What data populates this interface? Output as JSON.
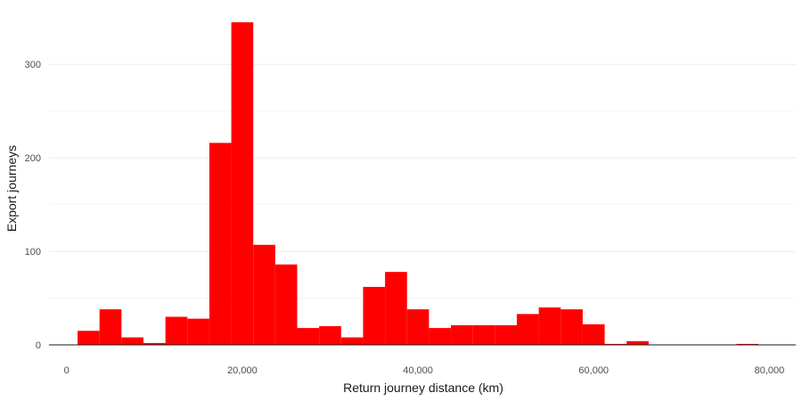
{
  "chart_data": {
    "type": "bar",
    "title": "",
    "xlabel": "Return journey distance (km)",
    "ylabel": "Export journeys",
    "xlim": [
      -2000,
      83000
    ],
    "ylim": [
      0,
      345
    ],
    "x_ticks": [
      {
        "value": 0,
        "label": "0"
      },
      {
        "value": 20000,
        "label": "20,000"
      },
      {
        "value": 40000,
        "label": "40,000"
      },
      {
        "value": 60000,
        "label": "60,000"
      },
      {
        "value": 80000,
        "label": "80,000"
      }
    ],
    "y_ticks": [
      {
        "value": 0,
        "label": "0"
      },
      {
        "value": 100,
        "label": "100"
      },
      {
        "value": 200,
        "label": "200"
      },
      {
        "value": 300,
        "label": "300"
      }
    ],
    "y_minor_gridlines": [
      50,
      150,
      250
    ],
    "grid": true,
    "bar_color": "#ff0000",
    "bin_width": 2500,
    "bins": [
      {
        "x0": 1250,
        "x1": 3750,
        "count": 15
      },
      {
        "x0": 3750,
        "x1": 6250,
        "count": 38
      },
      {
        "x0": 6250,
        "x1": 8750,
        "count": 8
      },
      {
        "x0": 8750,
        "x1": 11250,
        "count": 2
      },
      {
        "x0": 11250,
        "x1": 13750,
        "count": 30
      },
      {
        "x0": 13750,
        "x1": 16250,
        "count": 28
      },
      {
        "x0": 16250,
        "x1": 18750,
        "count": 216
      },
      {
        "x0": 18750,
        "x1": 21250,
        "count": 345
      },
      {
        "x0": 21250,
        "x1": 23750,
        "count": 107
      },
      {
        "x0": 23750,
        "x1": 26250,
        "count": 86
      },
      {
        "x0": 26250,
        "x1": 28750,
        "count": 18
      },
      {
        "x0": 28750,
        "x1": 31250,
        "count": 20
      },
      {
        "x0": 31250,
        "x1": 33750,
        "count": 8
      },
      {
        "x0": 33750,
        "x1": 36250,
        "count": 62
      },
      {
        "x0": 36250,
        "x1": 38750,
        "count": 78
      },
      {
        "x0": 38750,
        "x1": 41250,
        "count": 38
      },
      {
        "x0": 41250,
        "x1": 43750,
        "count": 18
      },
      {
        "x0": 43750,
        "x1": 46250,
        "count": 21
      },
      {
        "x0": 46250,
        "x1": 48750,
        "count": 21
      },
      {
        "x0": 48750,
        "x1": 51250,
        "count": 21
      },
      {
        "x0": 51250,
        "x1": 53750,
        "count": 33
      },
      {
        "x0": 53750,
        "x1": 56250,
        "count": 40
      },
      {
        "x0": 56250,
        "x1": 58750,
        "count": 38
      },
      {
        "x0": 58750,
        "x1": 61250,
        "count": 22
      },
      {
        "x0": 61250,
        "x1": 63750,
        "count": 1
      },
      {
        "x0": 63750,
        "x1": 66250,
        "count": 4
      },
      {
        "x0": 66250,
        "x1": 68750,
        "count": 0
      },
      {
        "x0": 68750,
        "x1": 71250,
        "count": 0
      },
      {
        "x0": 71250,
        "x1": 73750,
        "count": 0
      },
      {
        "x0": 73750,
        "x1": 76250,
        "count": 0
      },
      {
        "x0": 76250,
        "x1": 78750,
        "count": 1
      },
      {
        "x0": 78750,
        "x1": 81250,
        "count": 0
      }
    ]
  }
}
